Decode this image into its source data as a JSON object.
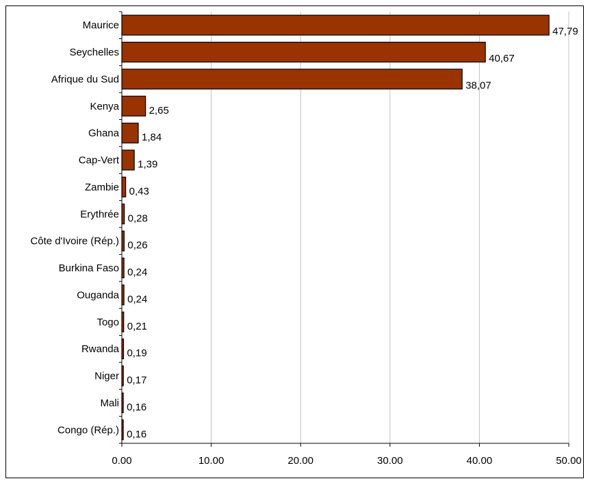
{
  "chart_data": {
    "type": "bar",
    "orientation": "horizontal",
    "categories": [
      "Maurice",
      "Seychelles",
      "Afrique du Sud",
      "Kenya",
      "Ghana",
      "Cap-Vert",
      "Zambie",
      "Erythrée",
      "Côte d'Ivoire (Rép.)",
      "Burkina Faso",
      "Ouganda",
      "Togo",
      "Rwanda",
      "Niger",
      "Mali",
      "Congo (Rép.)"
    ],
    "values": [
      47.79,
      40.67,
      38.07,
      2.65,
      1.84,
      1.39,
      0.43,
      0.28,
      0.26,
      0.24,
      0.24,
      0.21,
      0.19,
      0.17,
      0.16,
      0.16
    ],
    "value_labels": [
      "47,79",
      "40,67",
      "38,07",
      "2,65",
      "1,84",
      "1,39",
      "0,43",
      "0,28",
      "0,26",
      "0,24",
      "0,24",
      "0,21",
      "0,19",
      "0,17",
      "0,16",
      "0,16"
    ],
    "x_ticks": [
      "0.00",
      "10.00",
      "20.00",
      "30.00",
      "40.00",
      "50.00"
    ],
    "xlim": [
      0,
      50
    ],
    "bar_color": "#993300",
    "grid": "vertical",
    "legend": "none",
    "title": "",
    "xlabel": "",
    "ylabel": ""
  }
}
